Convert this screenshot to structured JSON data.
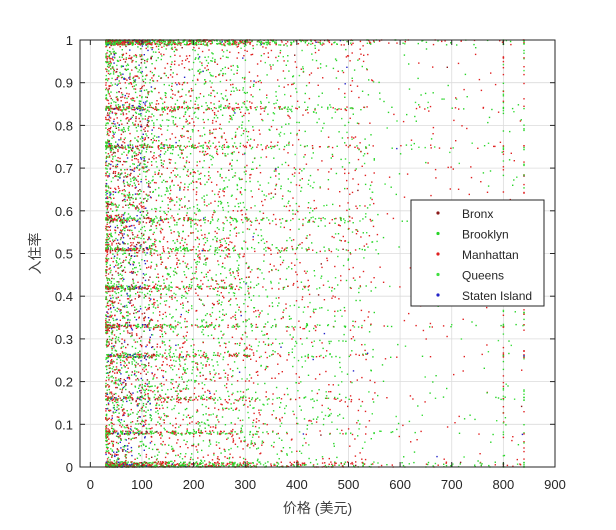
{
  "chart_data": {
    "type": "scatter",
    "title": "",
    "xlabel": "价格 (美元)",
    "ylabel": "入住率",
    "xlim": [
      -20,
      900
    ],
    "ylim": [
      0,
      1
    ],
    "xticks": [
      "0",
      "100",
      "200",
      "300",
      "400",
      "500",
      "600",
      "700",
      "800",
      "900"
    ],
    "yticks": [
      "0",
      "0.1",
      "0.2",
      "0.3",
      "0.4",
      "0.5",
      "0.6",
      "0.7",
      "0.8",
      "0.9",
      "1"
    ],
    "grid": true,
    "legend_position": "right",
    "series": [
      {
        "name": "Bronx",
        "color": "#8b1a1a",
        "share": 0.04
      },
      {
        "name": "Brooklyn",
        "color": "#28d428",
        "share": 0.38
      },
      {
        "name": "Manhattan",
        "color": "#e02020",
        "share": 0.4
      },
      {
        "name": "Queens",
        "color": "#3fe03f",
        "share": 0.14
      },
      {
        "name": "Staten Island",
        "color": "#2323c8",
        "share": 0.04
      }
    ],
    "dense_price_range": [
      30,
      300
    ],
    "price_caps": [
      800,
      840
    ],
    "occupancy_bands": [
      0,
      0.08,
      0.16,
      0.26,
      0.33,
      0.42,
      0.51,
      0.58,
      0.75,
      0.84,
      1
    ]
  }
}
